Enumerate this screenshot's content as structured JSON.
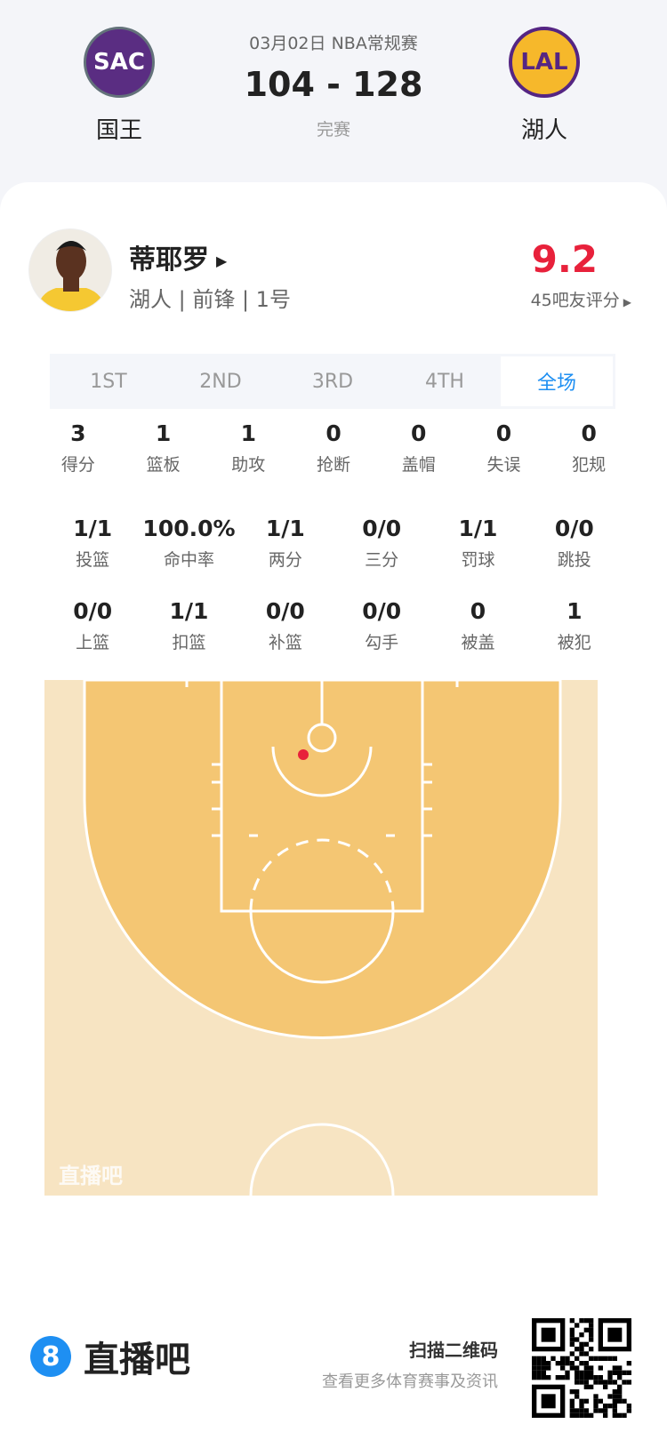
{
  "match": {
    "date_league": "03月02日 NBA常规赛",
    "score": "104 - 128",
    "status": "完赛",
    "home": {
      "abbr": "SAC",
      "name": "国王"
    },
    "away": {
      "abbr": "LAL",
      "name": "湖人"
    }
  },
  "player": {
    "name": "蒂耶罗",
    "info": "湖人 | 前锋 | 1号",
    "rating": "9.2",
    "rating_count": "45吧友评分"
  },
  "tabs": [
    "1ST",
    "2ND",
    "3RD",
    "4TH",
    "全场"
  ],
  "active_tab": "全场",
  "stats_row1": [
    {
      "v": "3",
      "l": "得分"
    },
    {
      "v": "1",
      "l": "篮板"
    },
    {
      "v": "1",
      "l": "助攻"
    },
    {
      "v": "0",
      "l": "抢断"
    },
    {
      "v": "0",
      "l": "盖帽"
    },
    {
      "v": "0",
      "l": "失误"
    },
    {
      "v": "0",
      "l": "犯规"
    }
  ],
  "stats_row2": [
    {
      "v": "1/1",
      "l": "投篮"
    },
    {
      "v": "100.0%",
      "l": "命中率"
    },
    {
      "v": "1/1",
      "l": "两分"
    },
    {
      "v": "0/0",
      "l": "三分"
    },
    {
      "v": "1/1",
      "l": "罚球"
    },
    {
      "v": "0/0",
      "l": "跳投"
    }
  ],
  "stats_row3": [
    {
      "v": "0/0",
      "l": "上篮"
    },
    {
      "v": "1/1",
      "l": "扣篮"
    },
    {
      "v": "0/0",
      "l": "补篮"
    },
    {
      "v": "0/0",
      "l": "勾手"
    },
    {
      "v": "0",
      "l": "被盖"
    },
    {
      "v": "1",
      "l": "被犯"
    }
  ],
  "court": {
    "watermark": "直播吧",
    "shots": [
      {
        "result": "made",
        "color": "#e8213b"
      }
    ]
  },
  "footer": {
    "brand": "直播吧",
    "brand_icon": "8",
    "scan_title": "扫描二维码",
    "scan_sub": "查看更多体育赛事及资讯"
  },
  "colors": {
    "accent": "#1e8ff2",
    "rating": "#e8213b",
    "court_outer": "#f7e4c2",
    "court_inner": "#f4c673"
  }
}
